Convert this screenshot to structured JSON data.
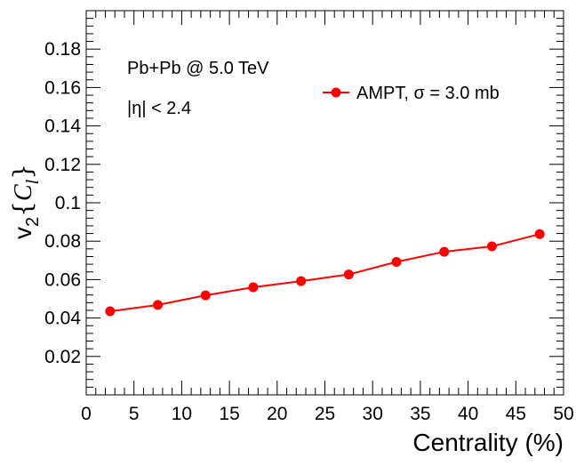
{
  "chart_data": {
    "type": "line",
    "x": [
      2.5,
      7.5,
      12.5,
      17.5,
      22.5,
      27.5,
      32.5,
      37.5,
      42.5,
      47.5
    ],
    "series": [
      {
        "name": "AMPT, σ = 3.0 mb",
        "color": "#ff0000",
        "marker": "filled-circle",
        "values": [
          0.0435,
          0.0468,
          0.0518,
          0.056,
          0.0592,
          0.0627,
          0.0692,
          0.0745,
          0.0773,
          0.0837
        ]
      }
    ],
    "xlabel": "Centrality (%)",
    "ylabel": {
      "base": "v",
      "sub": "2",
      "open": "{",
      "var": "C",
      "var_sub": "l",
      "close": "}"
    },
    "xlim": [
      0,
      50
    ],
    "ylim": [
      0,
      0.2
    ],
    "x_ticks": [
      "0",
      "5",
      "10",
      "15",
      "20",
      "25",
      "30",
      "35",
      "40",
      "45",
      "50"
    ],
    "y_ticks": [
      "0.02",
      "0.04",
      "0.06",
      "0.08",
      "0.1",
      "0.12",
      "0.14",
      "0.16",
      "0.18"
    ],
    "annotations": [
      "Pb+Pb @ 5.0 TeV",
      "|η| < 2.4"
    ],
    "legend_position": "top-right",
    "grid": false
  }
}
